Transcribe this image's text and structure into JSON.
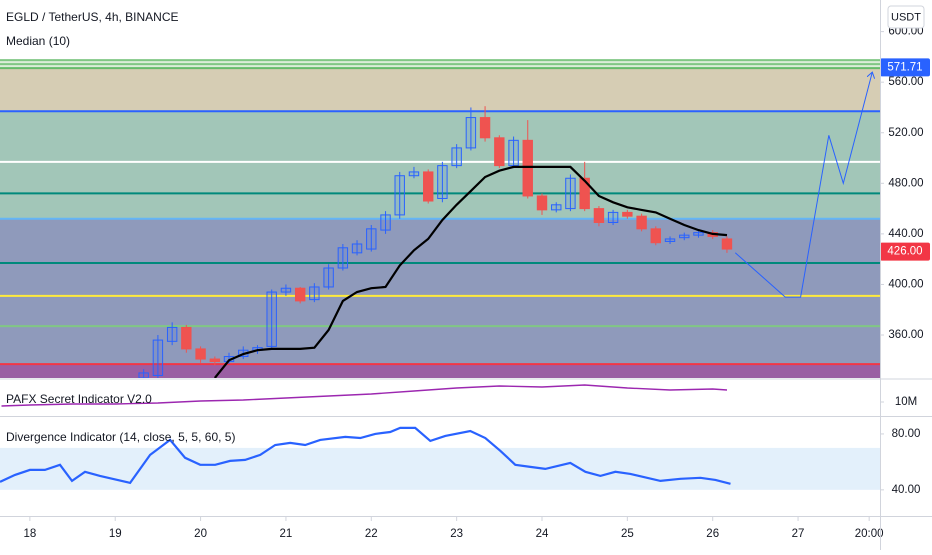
{
  "chart_data": [
    {
      "type": "candlestick",
      "title": "EGLD / TetherUS, 4h, BINANCE",
      "currency": "USDT",
      "x": [
        19.333,
        19.5,
        19.667,
        19.833,
        20,
        20.167,
        20.333,
        20.5,
        20.667,
        20.833,
        21,
        21.167,
        21.333,
        21.5,
        21.667,
        21.833,
        22,
        22.167,
        22.333,
        22.5,
        22.667,
        22.833,
        23,
        23.167,
        23.333,
        23.5,
        23.667,
        23.833,
        24,
        24.167,
        24.333,
        24.5,
        24.667,
        24.833,
        25,
        25.167,
        25.333,
        25.5,
        25.667,
        25.833,
        26,
        26.167
      ],
      "open": [
        326,
        328,
        355,
        366,
        349,
        341,
        339,
        343,
        348,
        351,
        394,
        397,
        388,
        398,
        413,
        425,
        428,
        443,
        455,
        486,
        489,
        468,
        494,
        508,
        532,
        516,
        494,
        514,
        470,
        459,
        460,
        484,
        460,
        449,
        457,
        454,
        444,
        434,
        437,
        439,
        441,
        436
      ],
      "high": [
        333,
        360,
        370,
        368,
        351,
        343,
        346,
        351,
        352,
        396,
        400,
        398,
        401,
        416,
        432,
        435,
        447,
        458,
        489,
        493,
        491,
        497,
        511,
        540,
        541,
        518,
        517,
        530,
        472,
        465,
        487,
        497,
        462,
        459,
        459,
        456,
        446,
        438,
        441,
        443,
        443,
        438
      ],
      "low": [
        326,
        326,
        352,
        346,
        338,
        336,
        337,
        341,
        345,
        349,
        391,
        385,
        386,
        396,
        411,
        423,
        426,
        440,
        452,
        484,
        464,
        465,
        492,
        506,
        513,
        492,
        492,
        468,
        455,
        457,
        458,
        458,
        446,
        447,
        452,
        442,
        431,
        432,
        435,
        437,
        436,
        425
      ],
      "close": [
        330,
        356,
        366,
        349,
        341,
        339,
        343,
        348,
        350,
        394,
        397,
        387,
        398,
        413,
        429,
        432,
        444,
        455,
        486,
        489,
        466,
        494,
        508,
        532,
        516,
        494,
        514,
        470,
        459,
        463,
        484,
        460,
        449,
        457,
        454,
        444,
        433,
        436,
        439,
        441,
        438,
        428
      ],
      "up_color": "#2962ff",
      "down_color": "#ef5350",
      "overlay": {
        "name": "Median (10)",
        "color": "#000000",
        "values": [
          null,
          null,
          null,
          null,
          null,
          326,
          340,
          345,
          348,
          349,
          349,
          349,
          350,
          364,
          387,
          394,
          397,
          398,
          415,
          427,
          436,
          451,
          463,
          474,
          485,
          490,
          493,
          493,
          493,
          493,
          493,
          482,
          470,
          465,
          461,
          459,
          457,
          452,
          447,
          443,
          440,
          439
        ]
      },
      "bands": [
        {
          "from": 571.1,
          "to": 577.4,
          "color": "#dcedd9"
        },
        {
          "from": 537,
          "to": 571.1,
          "color": "#d6cdb4"
        },
        {
          "from": 452,
          "to": 537,
          "color": "#a2c6b8"
        },
        {
          "from": 337,
          "to": 452,
          "color": "#8f9abb"
        },
        {
          "from": 326,
          "to": 337,
          "color": "#9a5fa3"
        }
      ],
      "levels": [
        {
          "value": 577.4,
          "color": "#81c784"
        },
        {
          "value": 574.3,
          "color": "#81c784"
        },
        {
          "value": 571.1,
          "color": "#66bb6a"
        },
        {
          "value": 537,
          "color": "#2962ff"
        },
        {
          "value": 497,
          "color": "#ffffff"
        },
        {
          "value": 472,
          "color": "#00897b"
        },
        {
          "value": 452,
          "color": "#64b5f6"
        },
        {
          "value": 417,
          "color": "#00897b"
        },
        {
          "value": 391,
          "color": "#ffeb3b"
        },
        {
          "value": 367,
          "color": "#81c784"
        },
        {
          "value": 337,
          "color": "#f23645"
        }
      ],
      "projection": {
        "color": "#2962ff",
        "x": [
          26.265,
          26.85,
          27.03,
          27.36,
          27.53,
          27.87
        ],
        "y": [
          425,
          390,
          390,
          518,
          480,
          568
        ]
      },
      "price_labels": [
        {
          "value": 571.71,
          "label": "571.71",
          "color": "#2962ff"
        },
        {
          "value": 426,
          "label": "426.00",
          "color": "#f23645"
        }
      ],
      "xlim": [
        17.65,
        27.96
      ],
      "ylim": [
        326,
        625
      ],
      "yticks": [
        {
          "value": 360,
          "label": "360.00"
        },
        {
          "value": 400,
          "label": "400.00"
        },
        {
          "value": 440,
          "label": "440.00"
        },
        {
          "value": 480,
          "label": "480.00"
        },
        {
          "value": 520,
          "label": "520.00"
        },
        {
          "value": 560,
          "label": "560.00"
        },
        {
          "value": 600,
          "label": "600.00"
        }
      ]
    },
    {
      "type": "line",
      "title": "PAFX Secret Indicator V2.0",
      "x": [
        17.667,
        18,
        18.5,
        19,
        19.5,
        20,
        20.5,
        21,
        21.5,
        22,
        22.5,
        23,
        23.5,
        24,
        24.5,
        25,
        25.5,
        26,
        26.167
      ],
      "series": [
        {
          "color": "#9c27b0",
          "values": [
            9.2,
            9.4,
            9.6,
            9.6,
            9.8,
            10.2,
            10.4,
            10.8,
            11.2,
            11.6,
            12.2,
            12.8,
            13.2,
            13.0,
            13.4,
            12.8,
            12.4,
            12.6,
            12.4
          ]
        }
      ],
      "xlim": [
        17.65,
        27.96
      ],
      "ylim": [
        7.4,
        14.4
      ],
      "yticks": [
        {
          "value": 10,
          "label": "10M"
        }
      ]
    },
    {
      "type": "line",
      "title": "Divergence Indicator (14, close, 5, 5, 60, 5)",
      "x": [
        17.65,
        17.826,
        18.0,
        18.176,
        18.353,
        18.494,
        18.646,
        18.822,
        19.174,
        19.408,
        19.643,
        19.819,
        19.995,
        20.171,
        20.346,
        20.522,
        20.698,
        20.874,
        21.05,
        21.226,
        21.402,
        21.695,
        21.871,
        22.046,
        22.222,
        22.339,
        22.515,
        22.691,
        22.867,
        23.16,
        23.336,
        23.512,
        23.687,
        23.863,
        24.039,
        24.332,
        24.508,
        24.684,
        24.86,
        25.036,
        25.387,
        25.622,
        25.856,
        26.032,
        26.208
      ],
      "series": [
        {
          "color": "#2962ff",
          "values": [
            45.7,
            50.7,
            54.3,
            54.3,
            57.9,
            46.4,
            52.9,
            50.0,
            45.0,
            65.0,
            75.7,
            62.9,
            57.9,
            57.9,
            60.7,
            61.4,
            65.0,
            72.1,
            73.6,
            72.1,
            75.7,
            77.9,
            77.1,
            80.0,
            81.4,
            84.3,
            84.3,
            75.0,
            78.6,
            82.1,
            77.1,
            67.9,
            57.9,
            56.4,
            55.0,
            59.3,
            52.9,
            50.0,
            52.9,
            51.4,
            46.4,
            47.9,
            48.6,
            47.1,
            44.3
          ]
        }
      ],
      "band": [
        40,
        70
      ],
      "band_color": "#e3f0fb",
      "xlim": [
        17.65,
        27.96
      ],
      "ylim": [
        22,
        91.4
      ],
      "yticks": [
        {
          "value": 80,
          "label": "80.00"
        },
        {
          "value": 40,
          "label": "40.00"
        }
      ],
      "xticks": [
        18,
        19,
        20,
        21,
        22,
        23,
        24,
        25,
        26,
        27,
        {
          "value": 27.833,
          "label": "20:00"
        }
      ]
    }
  ]
}
